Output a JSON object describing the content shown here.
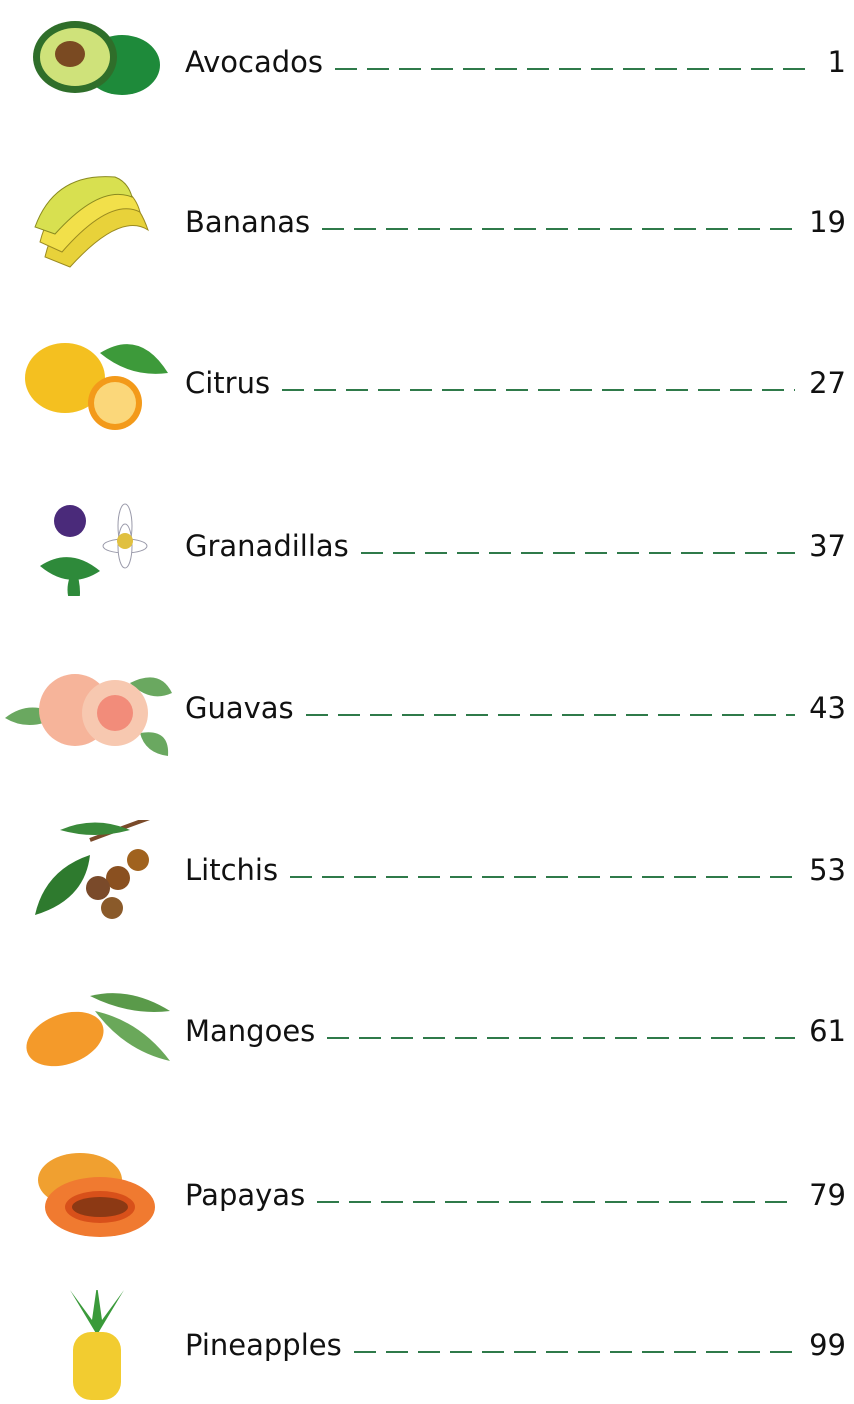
{
  "contents": [
    {
      "title": "Avocados",
      "page": "1"
    },
    {
      "title": "Bananas",
      "page": "19"
    },
    {
      "title": "Citrus",
      "page": "27"
    },
    {
      "title": "Granadillas",
      "page": "37"
    },
    {
      "title": "Guavas",
      "page": "43"
    },
    {
      "title": "Litchis",
      "page": "53"
    },
    {
      "title": "Mangoes",
      "page": "61"
    },
    {
      "title": "Papayas",
      "page": "79"
    },
    {
      "title": "Pineapples",
      "page": "99"
    }
  ]
}
